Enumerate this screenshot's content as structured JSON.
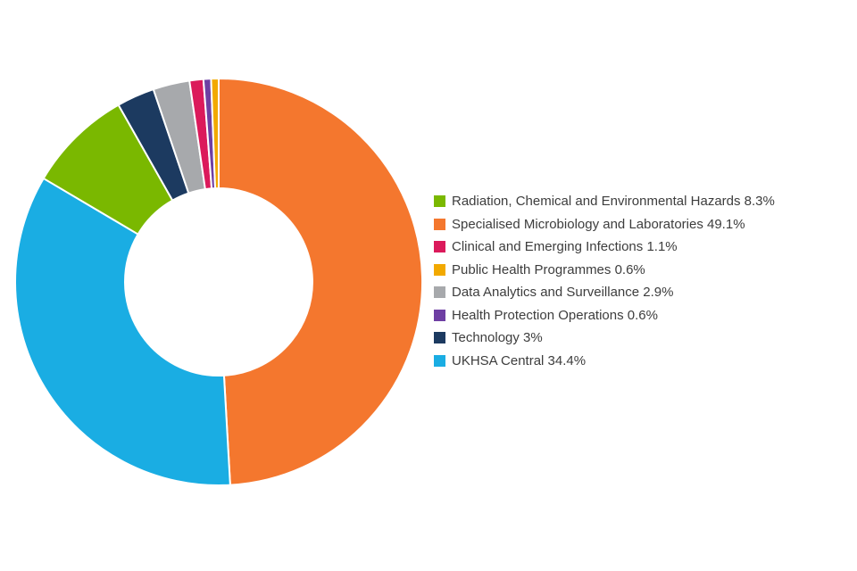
{
  "chart_data": {
    "type": "pie",
    "subtype": "donut",
    "title": "",
    "unit": "%",
    "legend_position": "right",
    "start_angle_deg": 0,
    "direction": "clockwise",
    "inner_radius_ratio": 0.46,
    "background_color": "#ffffff",
    "slice_separator_color": "#ffffff",
    "slices": [
      {
        "label": "Radiation, Chemical and Environmental Hazards",
        "pct_label": "8.3%",
        "value": 8.3,
        "color": "#7AB800"
      },
      {
        "label": "Specialised Microbiology and Laboratories",
        "pct_label": "49.1%",
        "value": 49.1,
        "color": "#F4772E"
      },
      {
        "label": "Clinical and Emerging Infections",
        "pct_label": "1.1%",
        "value": 1.1,
        "color": "#DB1A5B"
      },
      {
        "label": "Public Health Programmes",
        "pct_label": "0.6%",
        "value": 0.6,
        "color": "#F2A900"
      },
      {
        "label": "Data Analytics and Surveillance",
        "pct_label": "2.9%",
        "value": 2.9,
        "color": "#A7A9AC"
      },
      {
        "label": "Health Protection Operations",
        "pct_label": "0.6%",
        "value": 0.6,
        "color": "#6E3FA3"
      },
      {
        "label": "Technology",
        "pct_label": "3%",
        "value": 3,
        "color": "#1C3A60"
      },
      {
        "label": "UKHSA Central",
        "pct_label": "34.4%",
        "value": 34.4,
        "color": "#1AADE3"
      }
    ],
    "draw_order": [
      1,
      7,
      0,
      6,
      4,
      2,
      5,
      3
    ]
  }
}
